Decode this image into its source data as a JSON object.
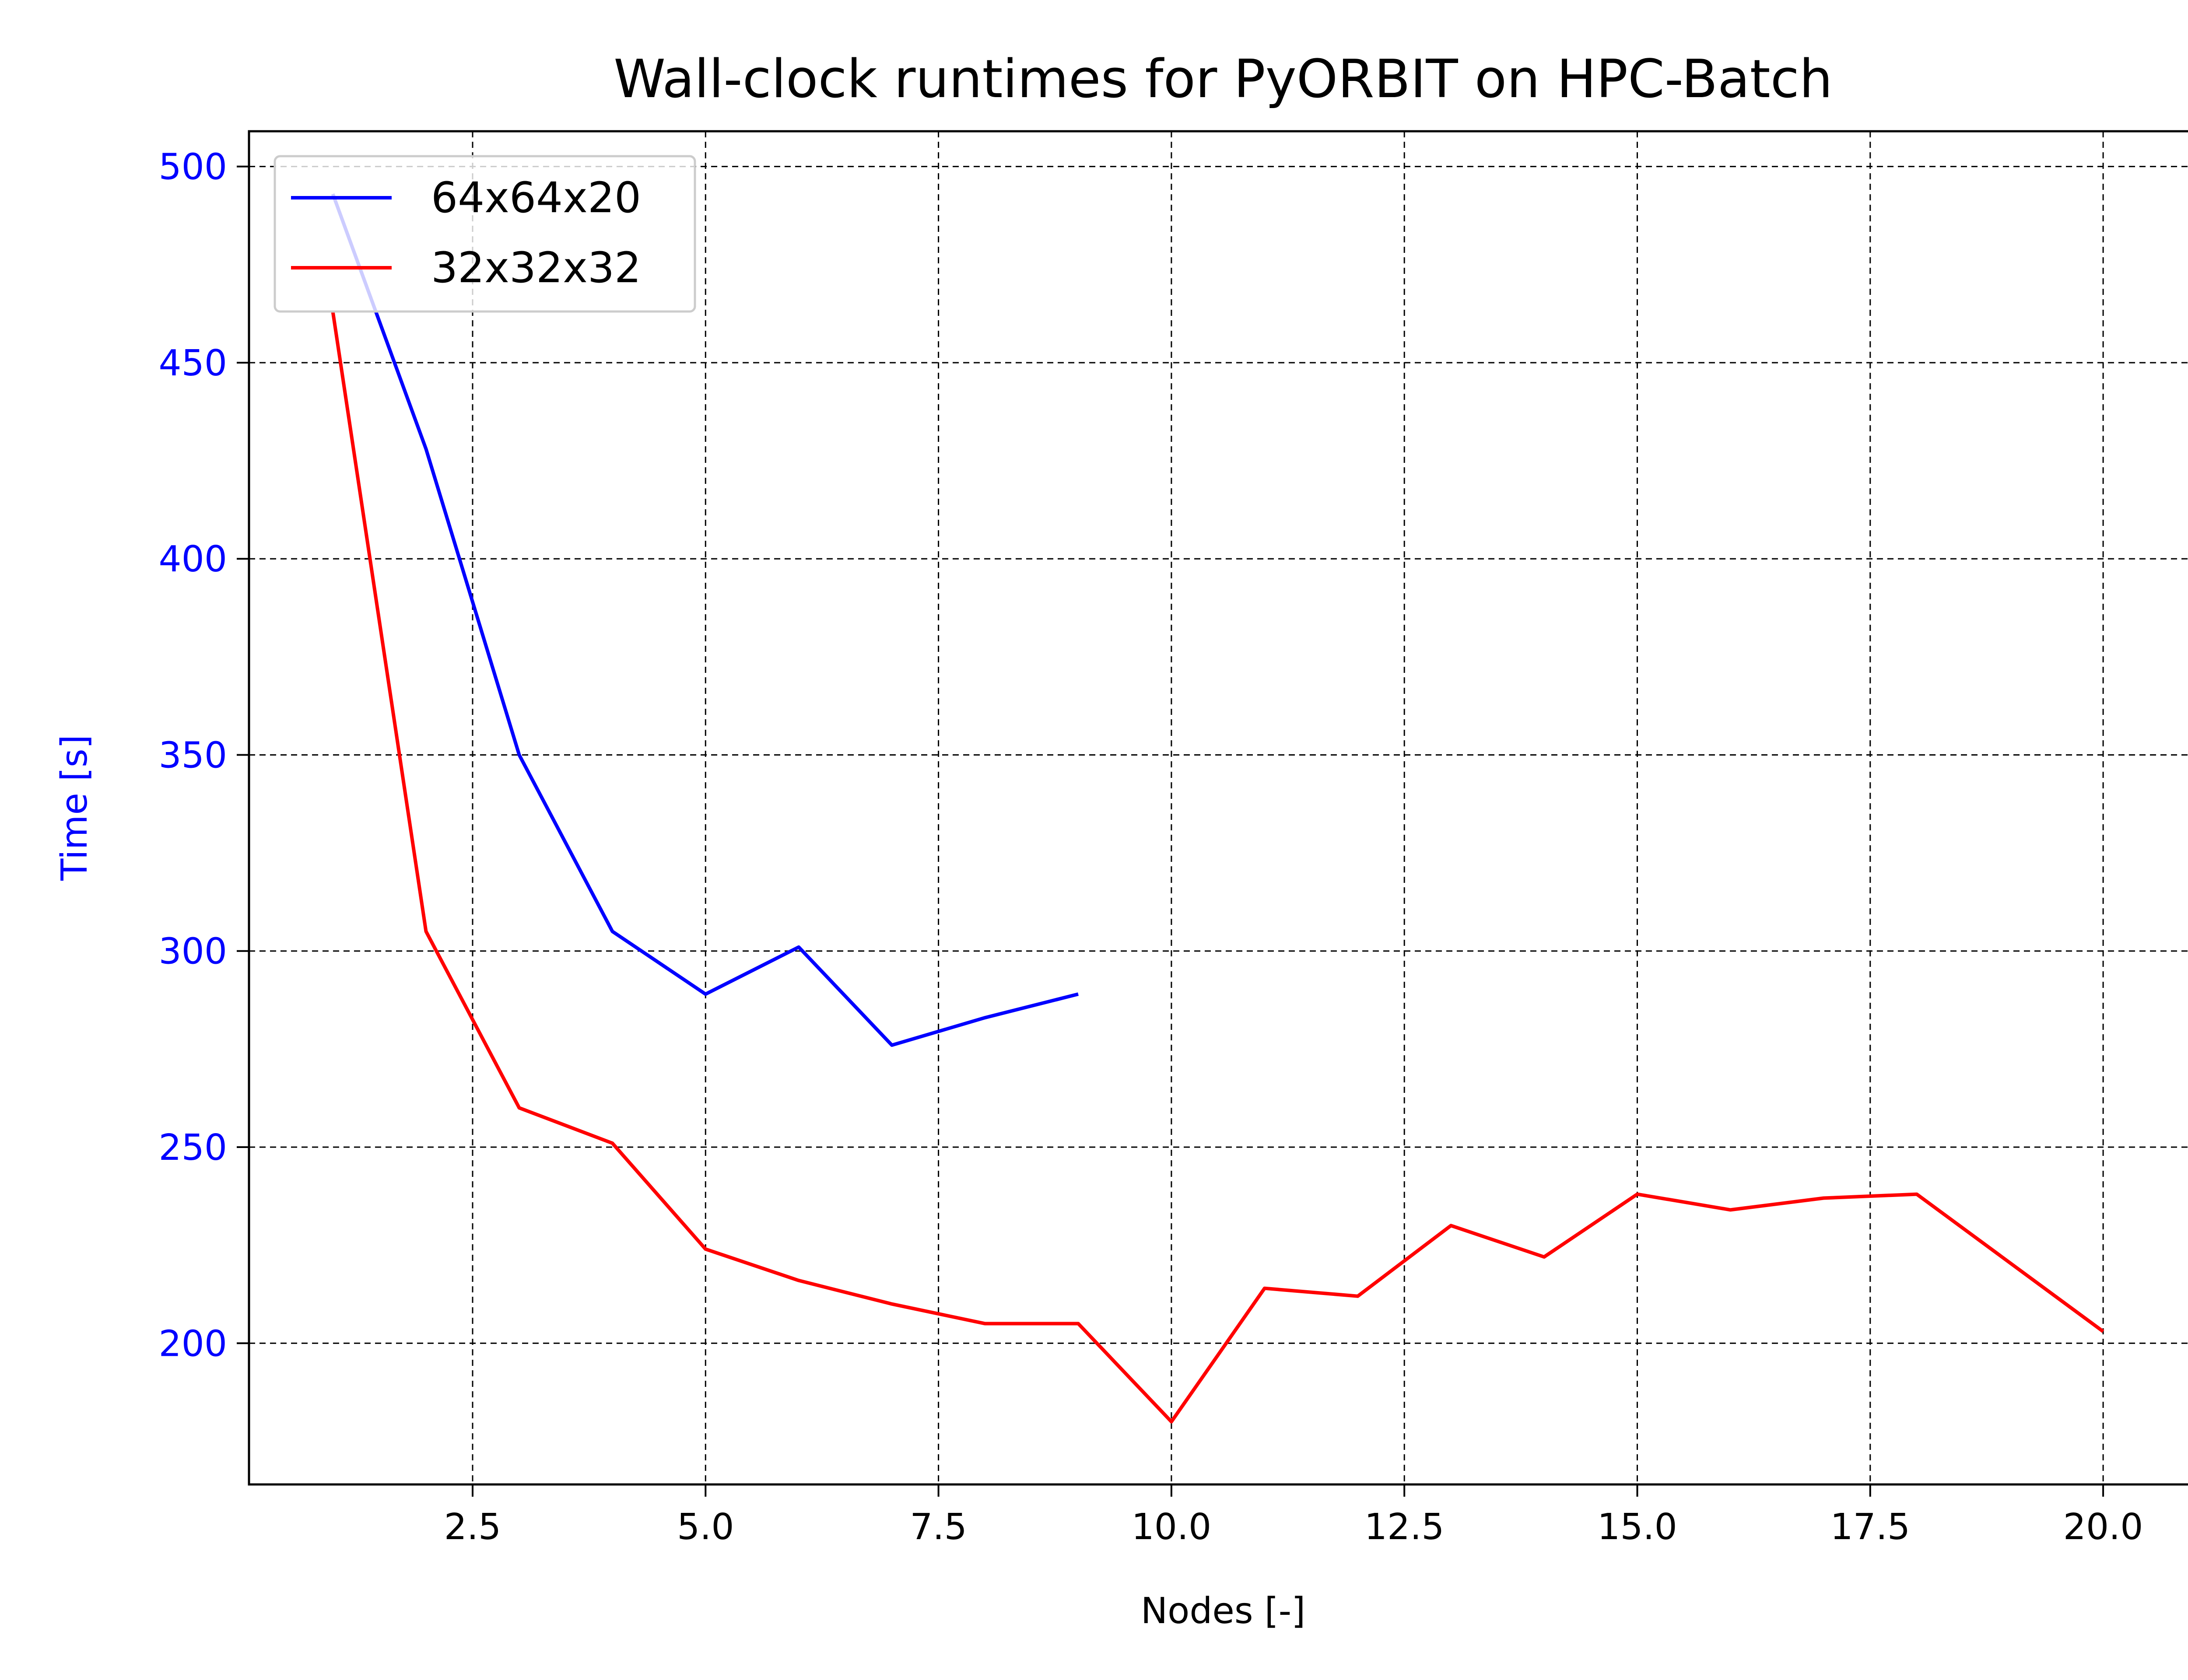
{
  "chart_data": {
    "type": "line",
    "title": "Wall-clock runtimes for PyORBIT on HPC-Batch",
    "xlabel": "Nodes [-]",
    "ylabel": "Time [s]",
    "xlim": [
      0.1,
      21.0
    ],
    "ylim": [
      164,
      509
    ],
    "x_ticks": [
      2.5,
      5.0,
      7.5,
      10.0,
      12.5,
      15.0,
      17.5,
      20.0
    ],
    "x_tick_labels": [
      "2.5",
      "5.0",
      "7.5",
      "10.0",
      "12.5",
      "15.0",
      "17.5",
      "20.0"
    ],
    "y_ticks": [
      200,
      250,
      300,
      350,
      400,
      450,
      500
    ],
    "y_tick_labels": [
      "200",
      "250",
      "300",
      "350",
      "400",
      "450",
      "500"
    ],
    "grid": true,
    "legend_position": "top-left",
    "axis_color_y": "#0000ff",
    "series": [
      {
        "name": "64x64x20",
        "color": "#0000ff",
        "x": [
          1,
          2,
          3,
          4,
          5,
          6,
          7,
          8,
          9
        ],
        "y": [
          493,
          428,
          350,
          305,
          289,
          301,
          276,
          283,
          289
        ]
      },
      {
        "name": "32x32x32",
        "color": "#ff0000",
        "x": [
          1,
          2,
          3,
          4,
          5,
          6,
          7,
          8,
          9,
          10,
          11,
          12,
          13,
          14,
          15,
          16,
          17,
          18,
          20
        ],
        "y": [
          463,
          305,
          260,
          251,
          224,
          216,
          210,
          205,
          205,
          180,
          214,
          212,
          230,
          222,
          238,
          234,
          237,
          238,
          203
        ]
      }
    ]
  }
}
